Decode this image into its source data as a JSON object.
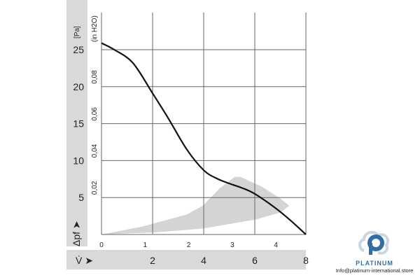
{
  "chart_data": {
    "type": "line",
    "y_unit_primary": "[Pa]",
    "y_unit_secondary": "(in H2O)",
    "ylabel": "Δpf",
    "xlabel": "V̇",
    "x_primary_ticks": [
      "2",
      "4",
      "6",
      "8"
    ],
    "x_secondary_ticks": [
      "0",
      "1",
      "2",
      "3",
      "4"
    ],
    "y_primary_ticks": [
      "5",
      "10",
      "15",
      "20",
      "25"
    ],
    "y_secondary_ticks": [
      "0,02",
      "0,04",
      "0,06",
      "0,08"
    ],
    "xlim": [
      0,
      8
    ],
    "ylim": [
      0,
      25
    ],
    "grid": true,
    "series": [
      {
        "x": [
          0,
          0.5,
          1.23,
          2.0,
          2.6,
          3.34,
          4.0,
          4.5,
          5.0,
          5.5,
          6.0,
          6.8,
          7.4,
          8.0
        ],
        "y": [
          25.9,
          25.0,
          23.2,
          19.1,
          15.8,
          11.5,
          8.7,
          7.6,
          6.9,
          6.3,
          5.5,
          3.6,
          1.9,
          0
        ],
        "color": "#111111"
      }
    ],
    "shaded_region": {
      "color": "#d4d4d4",
      "x": [
        0,
        1.63,
        3.33,
        3.97,
        4.61,
        5.21,
        5.43,
        6.26,
        6.99,
        7.35,
        7.0,
        6.07,
        3.97,
        2.14,
        0
      ],
      "y": [
        0,
        1.1,
        2.7,
        3.9,
        6.2,
        7.8,
        7.8,
        6.5,
        4.9,
        3.9,
        3.0,
        2.05,
        0.8,
        0.3,
        0
      ]
    }
  },
  "logo": {
    "name": "PLATINUM",
    "email": "Info@platinum-international.store",
    "color": "#2f6fa6"
  }
}
